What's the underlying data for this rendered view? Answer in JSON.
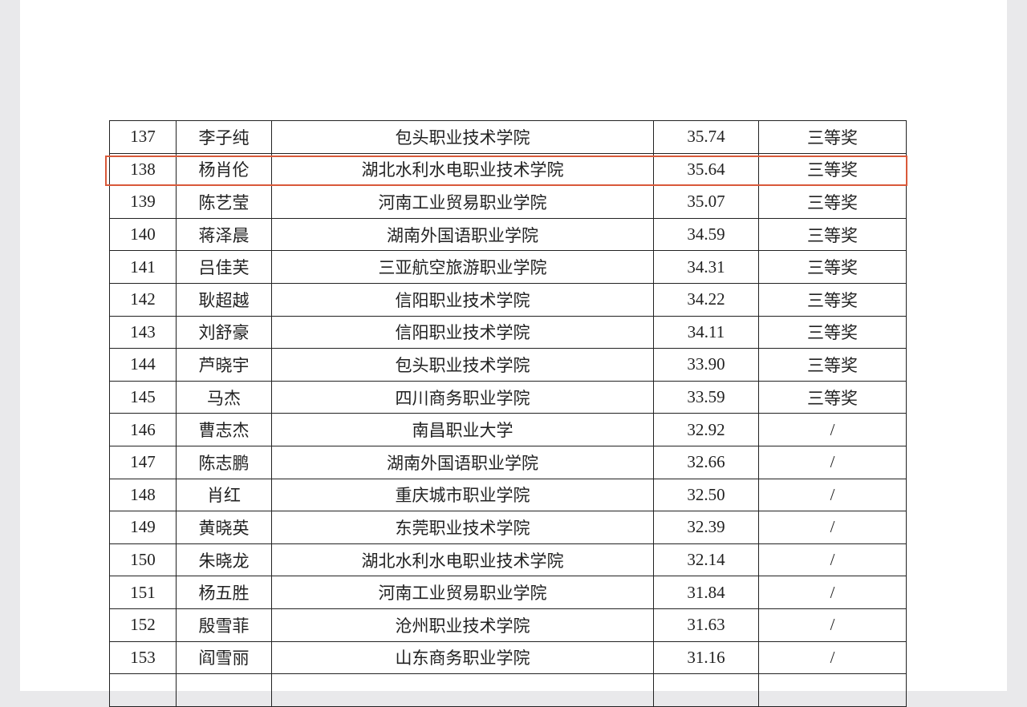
{
  "table": {
    "rows": [
      [
        "137",
        "李子纯",
        "包头职业技术学院",
        "35.74",
        "三等奖"
      ],
      [
        "138",
        "杨肖伦",
        "湖北水利水电职业技术学院",
        "35.64",
        "三等奖"
      ],
      [
        "139",
        "陈艺莹",
        "河南工业贸易职业学院",
        "35.07",
        "三等奖"
      ],
      [
        "140",
        "蒋泽晨",
        "湖南外国语职业学院",
        "34.59",
        "三等奖"
      ],
      [
        "141",
        "吕佳芙",
        "三亚航空旅游职业学院",
        "34.31",
        "三等奖"
      ],
      [
        "142",
        "耿超越",
        "信阳职业技术学院",
        "34.22",
        "三等奖"
      ],
      [
        "143",
        "刘舒豪",
        "信阳职业技术学院",
        "34.11",
        "三等奖"
      ],
      [
        "144",
        "芦晓宇",
        "包头职业技术学院",
        "33.90",
        "三等奖"
      ],
      [
        "145",
        "马杰",
        "四川商务职业学院",
        "33.59",
        "三等奖"
      ],
      [
        "146",
        "曹志杰",
        "南昌职业大学",
        "32.92",
        "/"
      ],
      [
        "147",
        "陈志鹏",
        "湖南外国语职业学院",
        "32.66",
        "/"
      ],
      [
        "148",
        "肖红",
        "重庆城市职业学院",
        "32.50",
        "/"
      ],
      [
        "149",
        "黄晓英",
        "东莞职业技术学院",
        "32.39",
        "/"
      ],
      [
        "150",
        "朱晓龙",
        "湖北水利水电职业技术学院",
        "32.14",
        "/"
      ],
      [
        "151",
        "杨五胜",
        "河南工业贸易职业学院",
        "31.84",
        "/"
      ],
      [
        "152",
        "殷雪菲",
        "沧州职业技术学院",
        "31.63",
        "/"
      ],
      [
        "153",
        "阎雪丽",
        "山东商务职业学院",
        "31.16",
        "/"
      ]
    ]
  }
}
